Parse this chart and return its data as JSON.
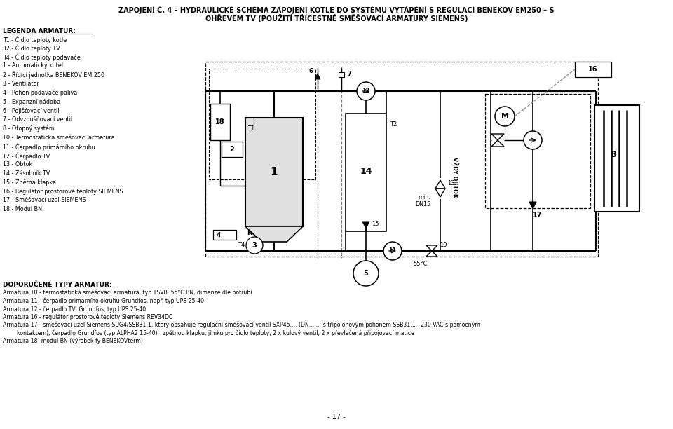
{
  "title_line1": "ZAPOJENÍ Č. 4 – HYDRAULICKÉ SCHÉMA ZAPOJENÍ KOTLE DO SYSTÉMU VYTÁPĚNÍ S REGULACÍ BENEKOV EM250 – S",
  "title_line2": "OHŘEVEM TV (POUŽITÍ TŘÍCESTNÉ SMĚŠOVACÍ ARMATURY SIEMENS)",
  "legend_title": "LEGENDA ARMATUR:",
  "legend_items": [
    "T1 - Čidlo teploty kotle",
    "T2 - Čidlo teploty TV",
    "T4 - Čidlo teploty podavače",
    "1 - Automatický kotel",
    "2 - Řídící jednotka BENEKOV EM 250",
    "3 - Ventilátor",
    "4 - Pohon podavače paliva",
    "5 - Expanzní nádoba",
    "6 - Pojišťovací ventil",
    "7 - Odvzdušňovací ventil",
    "8 - Otopný systém",
    "10 - Termostatická směšovací armatura",
    "11 - Čerpadlo primárního okruhu",
    "12 - Čerpadlo TV",
    "13 - Obtok",
    "14 - Zásobník TV",
    "15 - Zpětná klapka",
    "16 - Regulátor prostorové teploty SIEMENS",
    "17 - Směšovací uzel SIEMENS",
    "18 - Modul BN"
  ],
  "recommended_title": "DOPORUČENÉ TYPY ARMATUR:",
  "recommended_items": [
    "Armatura 10 - termostatická směšovací armatura, typ TSVB, 55°C BN, dimenze dle potrubí",
    "Armatura 11 - čerpadlo primárního okruhu Grundfos, např. typ UPS 25-40",
    "Armatura 12 - čerpadlo TV, Grundfos, typ UPS 25-40",
    "Armatura 16 - regulátor prostorové teploty Siemens REV34DC",
    "Armatura 17 - směšovací uzel Siemens SUG4/SSB31.1, který obsahuje regulační směšovací ventil SXP45.... (DN......  s třípolohovým pohonem SSB31.1,  230 VAC s pomocným",
    "        kontaktem), čerpadlo Grundfos (typ ALPHA2 15-40),  zpětnou klapku, jímku pro čidlo teploty, 2 x kulový ventil, 2 x převlečená připojovací matice",
    "Armatura 18- modul BN (výrobek fy BENEKOVterm)"
  ],
  "page_number": "- 17 -",
  "bg_color": "#ffffff",
  "text_color": "#000000"
}
